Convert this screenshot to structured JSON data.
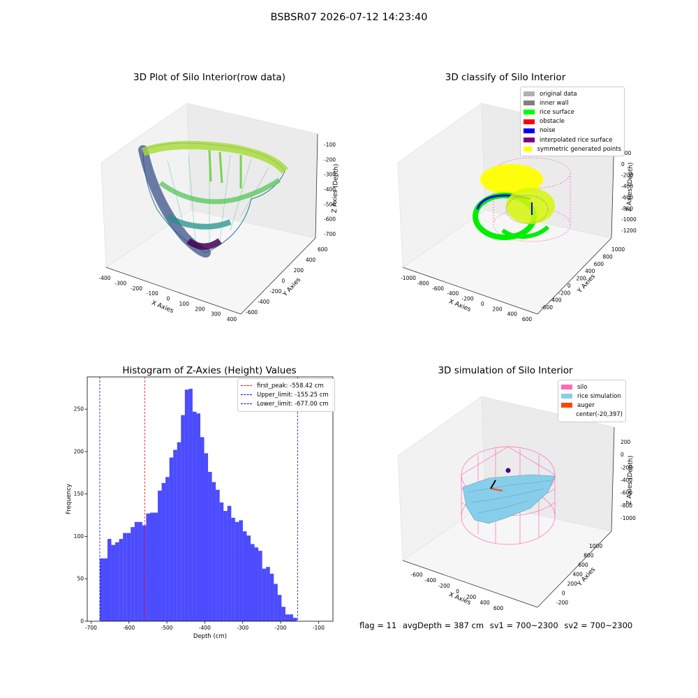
{
  "figure": {
    "suptitle": "BSBSR07 2026-07-12 14:23:40"
  },
  "panels": {
    "raw": {
      "title": "3D Plot of Silo Interior(row data)",
      "xlabel": "X Axies",
      "ylabel": "Y Axies",
      "zlabel": "Z Axies (Depth)",
      "xticks": [
        "-400",
        "-300",
        "-200",
        "-100",
        "0",
        "100",
        "200",
        "300",
        "400"
      ],
      "yticks": [
        "-600",
        "-400",
        "-200",
        "0",
        "200",
        "400",
        "600"
      ],
      "zticks": [
        "-100",
        "-200",
        "-300",
        "-400",
        "-500",
        "-600",
        "-700"
      ]
    },
    "classify": {
      "title": "3D classify of Silo Interior",
      "xlabel": "X Axies",
      "ylabel": "Y Axies",
      "zlabel": "Z Axies (Depth)",
      "xticks": [
        "-1000",
        "-800",
        "-600",
        "-400",
        "-200",
        "0",
        "200",
        "400",
        "600"
      ],
      "yticks": [
        "-600",
        "-400",
        "-200",
        "0",
        "200",
        "400",
        "600",
        "800",
        "1000"
      ],
      "zticks": [
        "200",
        "0",
        "-200",
        "-400",
        "-600",
        "-800",
        "-1000",
        "-1200"
      ],
      "legend": [
        {
          "label": "original data",
          "color": "#b0b0b0"
        },
        {
          "label": "inner wall",
          "color": "#808080"
        },
        {
          "label": "rice surface",
          "color": "#00ff00"
        },
        {
          "label": "obstacle",
          "color": "#ff0000"
        },
        {
          "label": "noise",
          "color": "#0000ff"
        },
        {
          "label": "interpolated rice surface",
          "color": "#800080"
        },
        {
          "label": "symmetric generated points",
          "color": "#ffff00"
        }
      ]
    },
    "histogram": {
      "title": "Histogram of Z-Axies (Height) Values",
      "xlabel": "Depth (cm)",
      "ylabel": "Frequency",
      "legend": [
        {
          "label": "first_peak: -558.42 cm",
          "color": "#ff0000"
        },
        {
          "label": "Upper_limit: -155.25 cm",
          "color": "#0000ff"
        },
        {
          "label": "Lower_limit: -677.00 cm",
          "color": "#0000ff"
        }
      ]
    },
    "simulation": {
      "title": "3D simulation of Silo Interior",
      "xlabel": "X Axies",
      "ylabel": "Y Axies",
      "zlabel": "Z Axies (Depth)",
      "xticks": [
        "-600",
        "-400",
        "-200",
        "0",
        "200",
        "400",
        "600"
      ],
      "yticks": [
        "-200",
        "0",
        "200",
        "400",
        "600",
        "800",
        "1000"
      ],
      "zticks": [
        "200",
        "0",
        "-200",
        "-400",
        "-600",
        "-800",
        "-1000"
      ],
      "legend": [
        {
          "label": "silo",
          "color": "#ff69b4"
        },
        {
          "label": "rice simulation",
          "color": "#87ceeb"
        },
        {
          "label": "auger",
          "color": "#ff4500"
        },
        {
          "label": "center(-20,397)",
          "color": ""
        }
      ]
    }
  },
  "status": {
    "flag": "flag = 11",
    "avg_depth": "avgDepth = 387 cm",
    "sv1": "sv1 = 700~2300",
    "sv2": "sv2 = 700~2300"
  },
  "chart_data": {
    "type": "bar",
    "title": "Histogram of Z-Axies (Height) Values",
    "xlabel": "Depth (cm)",
    "ylabel": "Frequency",
    "bin_start": -677,
    "bin_width": 10.2,
    "values": [
      74,
      74,
      97,
      90,
      93,
      97,
      104,
      104,
      111,
      117,
      117,
      113,
      127,
      128,
      128,
      154,
      163,
      170,
      193,
      202,
      211,
      243,
      273,
      274,
      247,
      245,
      217,
      198,
      176,
      164,
      155,
      140,
      130,
      136,
      122,
      117,
      119,
      106,
      101,
      91,
      87,
      83,
      62,
      64,
      56,
      44,
      31,
      17,
      8,
      8,
      4
    ],
    "first_peak": -558.42,
    "upper_limit": -155.25,
    "lower_limit": -677.0,
    "xticks": [
      -700,
      -600,
      -500,
      -400,
      -300,
      -200,
      -100
    ],
    "yticks": [
      0,
      50,
      100,
      150,
      200,
      250
    ],
    "xlim": [
      -710,
      -62
    ],
    "ylim": [
      0,
      288
    ]
  }
}
